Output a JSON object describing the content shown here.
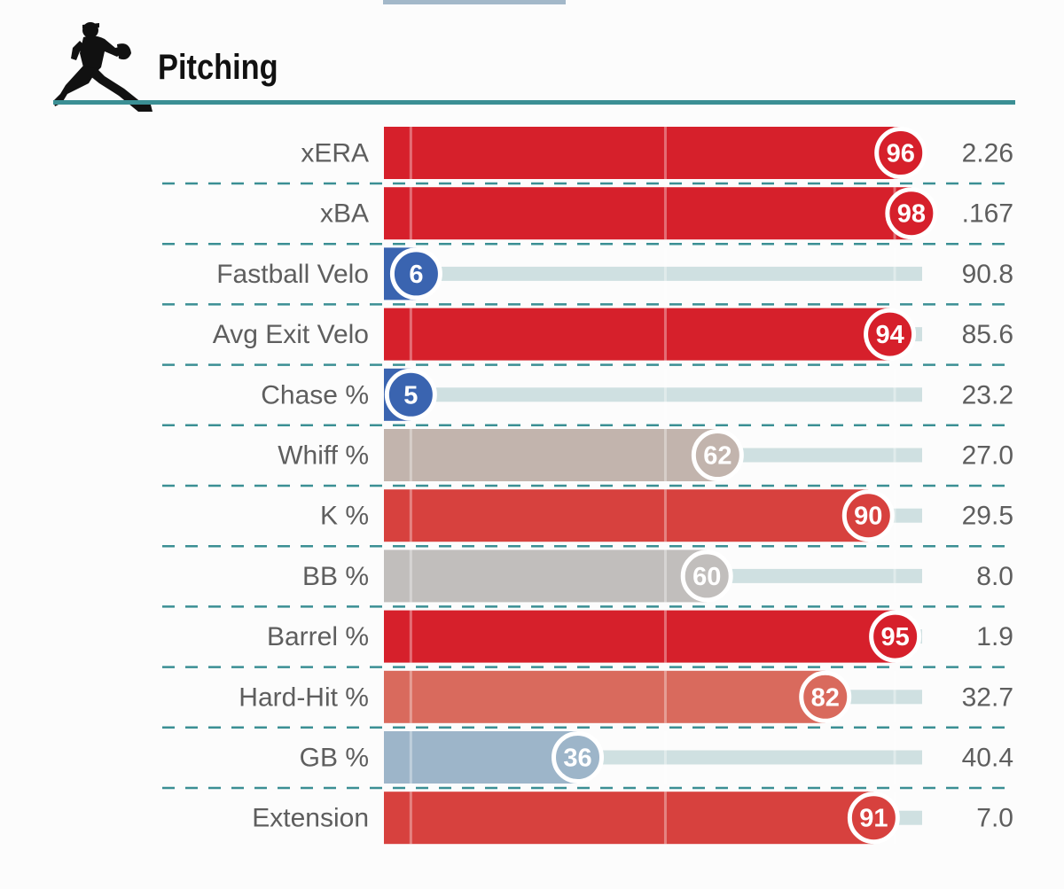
{
  "section": {
    "title": "Pitching",
    "icon": "pitcher-silhouette-icon"
  },
  "colors": {
    "rule": "#3b8f94",
    "track": "#cfe0e1",
    "poor_blue": "#3a64b0",
    "average_gray": "#c0bcb8",
    "elite_red": "#d6202b"
  },
  "chart_data": {
    "type": "bar",
    "orientation": "horizontal",
    "title": "Pitching",
    "xlim": [
      0,
      100
    ],
    "metrics": [
      {
        "name": "xERA",
        "percentile": 96,
        "value": "2.26",
        "color": "#d6202b"
      },
      {
        "name": "xBA",
        "percentile": 98,
        "value": ".167",
        "color": "#d6202b"
      },
      {
        "name": "Fastball Velo",
        "percentile": 6,
        "value": "90.8",
        "color": "#3a64b0"
      },
      {
        "name": "Avg Exit Velo",
        "percentile": 94,
        "value": "85.6",
        "color": "#d6202b"
      },
      {
        "name": "Chase %",
        "percentile": 5,
        "value": "23.2",
        "color": "#3a64b0"
      },
      {
        "name": "Whiff %",
        "percentile": 62,
        "value": "27.0",
        "color": "#c2b4ad"
      },
      {
        "name": "K %",
        "percentile": 90,
        "value": "29.5",
        "color": "#d7413e"
      },
      {
        "name": "BB %",
        "percentile": 60,
        "value": "8.0",
        "color": "#c1bebc"
      },
      {
        "name": "Barrel %",
        "percentile": 95,
        "value": "1.9",
        "color": "#d6202b"
      },
      {
        "name": "Hard-Hit %",
        "percentile": 82,
        "value": "32.7",
        "color": "#d96a5d"
      },
      {
        "name": "GB %",
        "percentile": 36,
        "value": "40.4",
        "color": "#9db5c9"
      },
      {
        "name": "Extension",
        "percentile": 91,
        "value": "7.0",
        "color": "#d7413e"
      }
    ]
  }
}
